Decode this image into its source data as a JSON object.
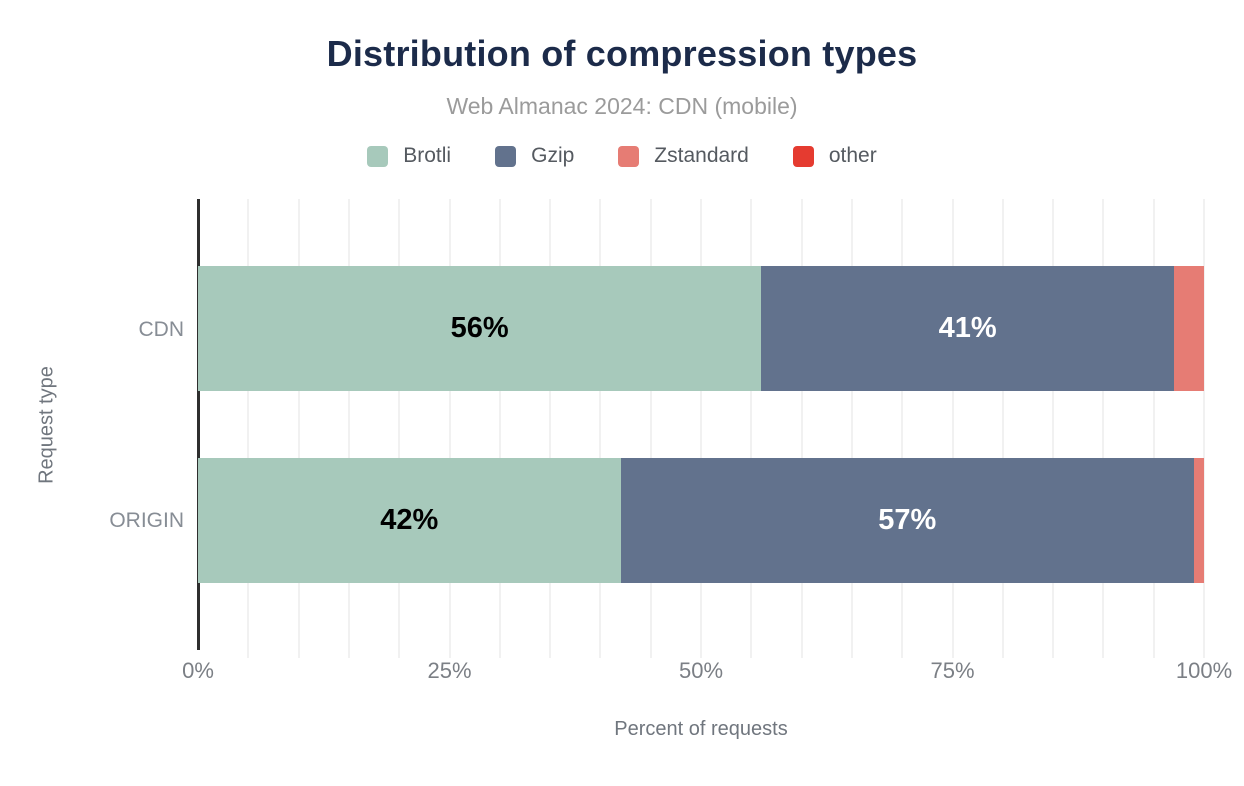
{
  "chart_data": {
    "type": "bar",
    "orientation": "horizontal",
    "stacked": true,
    "title": "Distribution of compression types",
    "subtitle": "Web Almanac 2024: CDN (mobile)",
    "categories": [
      "CDN",
      "ORIGIN"
    ],
    "series": [
      {
        "name": "Brotli",
        "color": "#a7c9bb",
        "label_color": "#000000",
        "values": [
          56,
          42
        ],
        "labels": [
          "56%",
          "42%"
        ]
      },
      {
        "name": "Gzip",
        "color": "#62728d",
        "label_color": "#ffffff",
        "values": [
          41,
          57
        ],
        "labels": [
          "41%",
          "57%"
        ]
      },
      {
        "name": "Zstandard",
        "color": "#e67c74",
        "label_color": "#000000",
        "values": [
          3,
          1
        ],
        "labels": [
          "",
          ""
        ]
      },
      {
        "name": "other",
        "color": "#e53b30",
        "label_color": "#ffffff",
        "values": [
          0,
          0
        ],
        "labels": [
          "",
          ""
        ]
      }
    ],
    "xlabel": "Percent of requests",
    "ylabel": "Request type",
    "xlim": [
      0,
      100
    ],
    "x_ticks": [
      "0%",
      "25%",
      "50%",
      "75%",
      "100%"
    ],
    "x_tick_values": [
      0,
      25,
      50,
      75,
      100
    ],
    "grid": true,
    "grid_interval": 5,
    "legend_position": "top",
    "colors": {
      "title": "#1c2b4a",
      "subtitle": "#9b9b9b",
      "axis_line": "#2e2e2e",
      "grid_line": "#f1f1f1"
    }
  }
}
